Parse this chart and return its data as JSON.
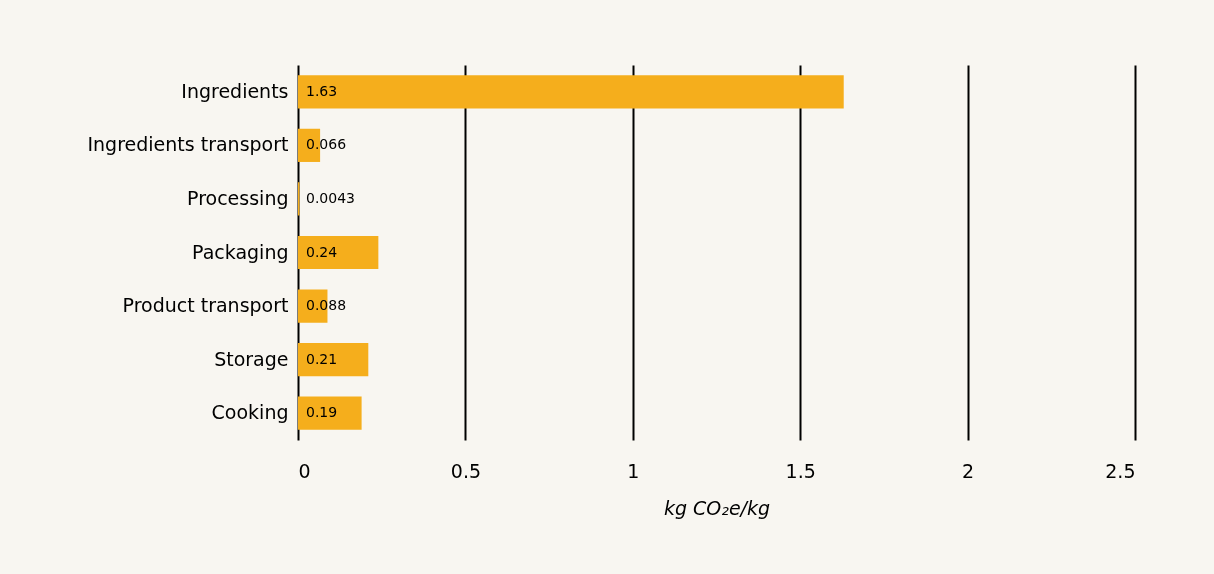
{
  "chart_data": {
    "type": "bar",
    "orientation": "horizontal",
    "categories": [
      "Ingredients",
      "Ingredients transport",
      "Processing",
      "Packaging",
      "Product transport",
      "Storage",
      "Cooking"
    ],
    "values": [
      1.63,
      0.066,
      0.0043,
      0.24,
      0.088,
      0.21,
      0.19
    ],
    "color": "#f5ae1c",
    "xlabel": "kg CO₂e/kg",
    "xlim": [
      0,
      2.5
    ],
    "xticks": [
      0,
      0.5,
      1,
      1.5,
      2,
      2.5
    ],
    "grid": "x",
    "data_labels": true
  }
}
